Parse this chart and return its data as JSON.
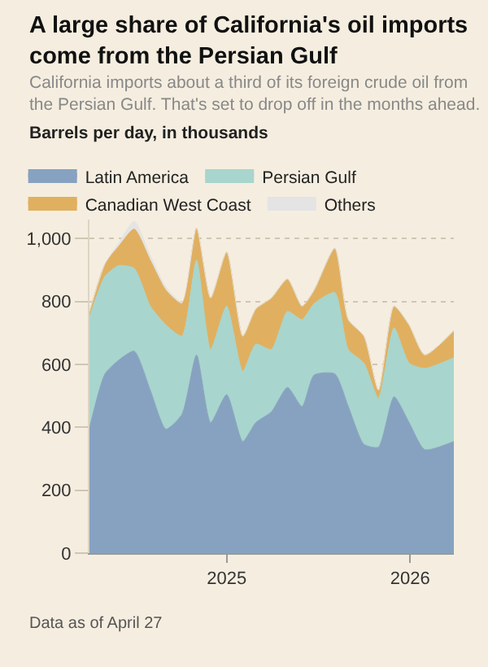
{
  "chart_data": {
    "type": "area",
    "stacked": true,
    "title": "A large share of California's oil imports come from the Persian Gulf",
    "subtitle": "California imports about a third of its foreign crude oil from the Persian Gulf. That's set to drop off in the months ahead.",
    "ylabel": "Barrels per day, in thousands",
    "annotations": [
      "Data as of April 27"
    ],
    "x": [
      "2024-04-03",
      "2024-05-04",
      "2024-05-31",
      "2024-07-01",
      "2024-08-02",
      "2024-09-02",
      "2024-10-04",
      "2024-11-02",
      "2024-11-30",
      "2025-01-01",
      "2025-02-02",
      "2025-02-28",
      "2025-03-31",
      "2025-05-02",
      "2025-05-31",
      "2025-06-24",
      "2025-08-04",
      "2025-08-31",
      "2025-10-01",
      "2025-10-30",
      "2025-11-30",
      "2025-12-30",
      "2026-01-30",
      "2026-03-29"
    ],
    "series": [
      {
        "name": "Latin America",
        "color": "#87a2c0",
        "values": [
          398,
          570,
          613,
          642,
          518,
          394,
          441,
          630,
          415,
          504,
          355,
          415,
          449,
          527,
          466,
          566,
          570,
          466,
          346,
          337,
          497,
          415,
          329,
          355
        ]
      },
      {
        "name": "Persian Gulf",
        "color": "#a8d5cd",
        "values": [
          352,
          310,
          301,
          263,
          267,
          331,
          249,
          301,
          232,
          281,
          223,
          249,
          198,
          241,
          276,
          227,
          258,
          181,
          258,
          155,
          219,
          189,
          258,
          266
        ]
      },
      {
        "name": "Canadian West Coast",
        "color": "#e0b060",
        "values": [
          18,
          40,
          61,
          125,
          146,
          111,
          103,
          103,
          164,
          172,
          112,
          112,
          164,
          103,
          43,
          43,
          141,
          95,
          86,
          26,
          69,
          121,
          43,
          86
        ]
      },
      {
        "name": "Others",
        "color": "#e4e4e4",
        "values": [
          0,
          0,
          10,
          25,
          15,
          10,
          5,
          0,
          0,
          0,
          0,
          0,
          0,
          0,
          0,
          0,
          0,
          0,
          0,
          0,
          0,
          0,
          0,
          0
        ]
      }
    ],
    "xlim": [
      "2024-04-03",
      "2026-03-29"
    ],
    "xticks": [
      {
        "value": "2025-01-01",
        "label": "2025"
      },
      {
        "value": "2026-01-01",
        "label": "2026"
      }
    ],
    "ylim": [
      0,
      1060
    ],
    "yticks": [
      0,
      {
        "value": 200,
        "label": "200"
      },
      {
        "value": 400,
        "label": "400"
      },
      {
        "value": 600,
        "label": "600"
      },
      {
        "value": 800,
        "label": "800"
      },
      {
        "value": 1000,
        "label": "1,000"
      }
    ],
    "grid": "y",
    "legend": "top"
  }
}
